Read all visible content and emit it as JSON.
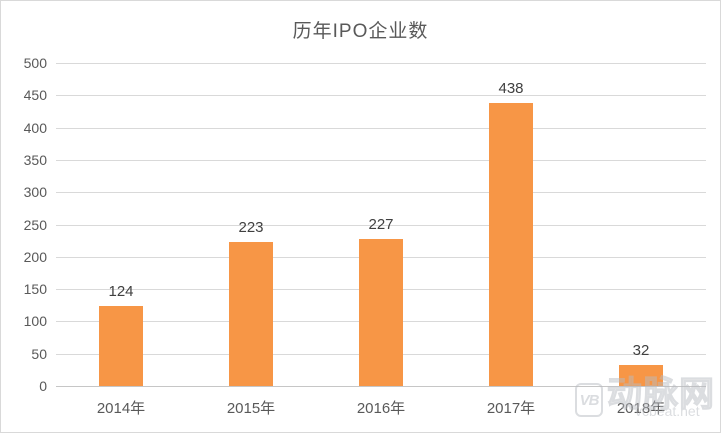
{
  "chart_data": {
    "type": "bar",
    "title": "历年IPO企业数",
    "categories": [
      "2014年",
      "2015年",
      "2016年",
      "2017年",
      "2018年"
    ],
    "values": [
      124,
      223,
      227,
      438,
      32
    ],
    "xlabel": "",
    "ylabel": "",
    "ylim": [
      0,
      500
    ],
    "yticks": [
      500,
      450,
      400,
      350,
      300,
      250,
      200,
      150,
      100,
      50,
      0
    ],
    "grid": true,
    "legend_position": "none",
    "bar_color": "#F79646",
    "gridline_color": "#D9D9D9",
    "value_label_color": "#404040",
    "axis_text_color": "#595959"
  },
  "watermark": {
    "logo_text": "VB",
    "name": "动脉网",
    "url": "vcbeat.net"
  }
}
